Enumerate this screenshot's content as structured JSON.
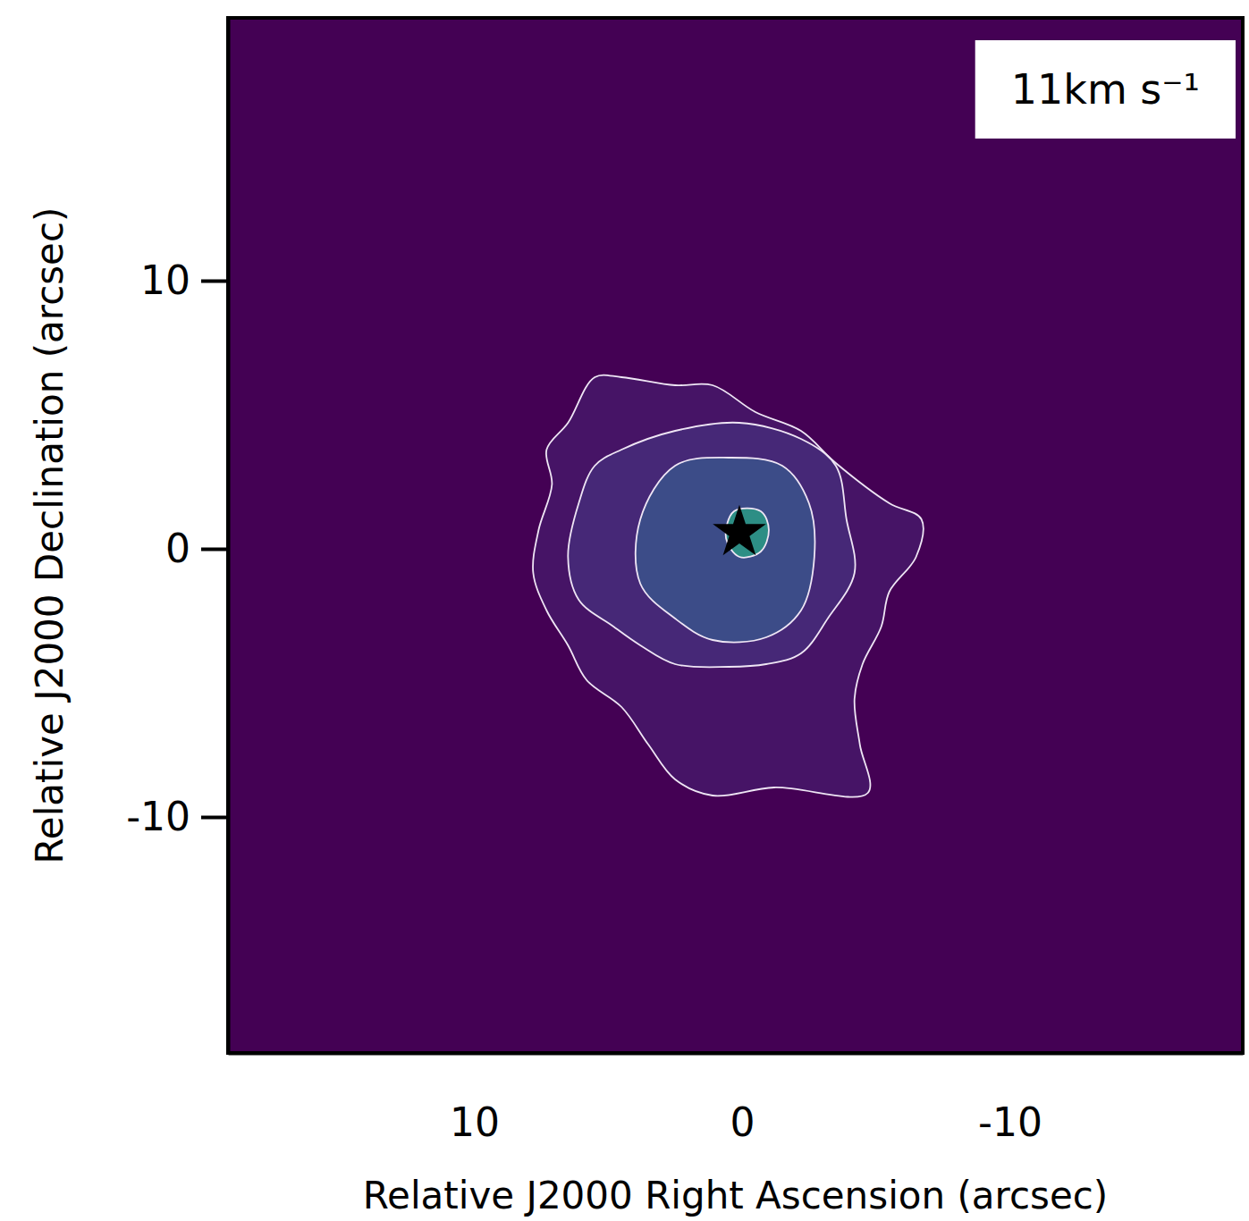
{
  "chart_data": {
    "type": "contour",
    "xlabel": "Relative J2000 Right Ascension (arcsec)",
    "ylabel": "Relative J2000 Declination (arcsec)",
    "annotation": "11km s⁻¹",
    "xlim": [
      19.2,
      -18.7
    ],
    "ylim": [
      -18.8,
      19.8
    ],
    "xticks": [
      10,
      0,
      -10
    ],
    "yticks": [
      10,
      0,
      -10
    ],
    "contours": [
      {
        "x": [
          5.5,
          4.5,
          2.5,
          1.1,
          -0.5,
          -2.2,
          -3.5,
          -5.5,
          -6.7,
          -6.5,
          -5.5,
          -5.2,
          -4.5,
          -4.2,
          -4.4,
          -4.7,
          -1.2,
          1.1,
          2.5,
          3.5,
          4.5,
          5.8,
          6.5,
          7.3,
          7.8,
          7.6,
          7.1,
          7.3,
          6.5
        ],
        "y": [
          6.4,
          6.4,
          6.1,
          6.1,
          5.1,
          4.4,
          3.2,
          1.7,
          1.1,
          -0.3,
          -1.6,
          -2.9,
          -4.3,
          -5.6,
          -7.3,
          -9.1,
          -8.9,
          -9.2,
          -8.6,
          -7.3,
          -5.9,
          -4.9,
          -3.6,
          -2.3,
          -0.9,
          0.7,
          2.4,
          3.7,
          4.7
        ]
      },
      {
        "x": [
          4.5,
          2.5,
          0.1,
          -2.2,
          -3.5,
          -3.9,
          -4.2,
          -3.2,
          -2.2,
          -0.9,
          0.5,
          2.5,
          3.8,
          4.8,
          6.1,
          6.5,
          6.1,
          5.5
        ],
        "y": [
          3.7,
          4.4,
          4.7,
          4.1,
          3.1,
          1.1,
          -0.9,
          -2.6,
          -3.9,
          -4.3,
          -4.4,
          -4.3,
          -3.6,
          -2.9,
          -1.9,
          -0.3,
          1.7,
          3.1
        ]
      },
      {
        "x": [
          2.5,
          0.5,
          -1.5,
          -2.5,
          -2.7,
          -2.2,
          -0.9,
          1.1,
          2.5,
          3.8,
          3.8
        ],
        "y": [
          3.1,
          3.4,
          3.1,
          1.7,
          -0.3,
          -2.3,
          -3.3,
          -3.4,
          -2.6,
          -1.3,
          1.1
        ]
      },
      {
        "x": [
          0.3,
          -0.7,
          -1.0,
          -0.7,
          0.1,
          0.6
        ],
        "y": [
          1.4,
          1.4,
          0.7,
          -0.1,
          -0.3,
          0.4
        ]
      }
    ],
    "source": {
      "x": 0.1,
      "y": 0.6,
      "marker": "star"
    }
  }
}
